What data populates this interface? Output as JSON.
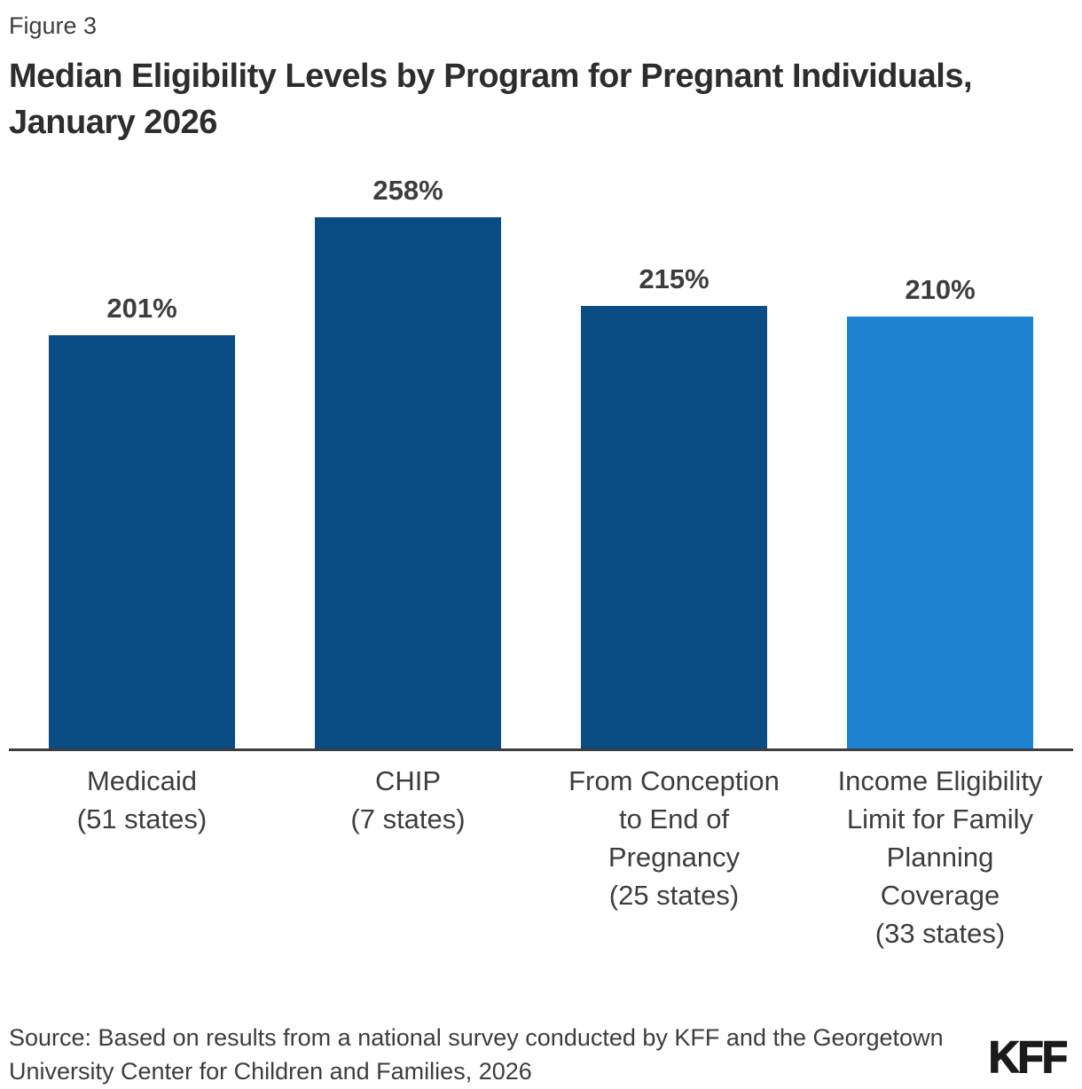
{
  "figure_label": "Figure 3",
  "title_line1": "Median Eligibility Levels by Program for Pregnant Individuals,",
  "title_line2": "January 2026",
  "source": "Source: Based on results from a national survey conducted by KFF and the Georgetown\nUniversity Center for Children and Families, 2026",
  "logo_text": "KFF",
  "colors": {
    "bar_dark_blue": "#0a4d85",
    "bar_light_blue": "#1e82d2",
    "axis": "#3d3d3d",
    "text": "#3d3d3d",
    "title_text": "#2d2d2d",
    "background": "#ffffff"
  },
  "chart_data": {
    "type": "bar",
    "title": "Median Eligibility Levels by Program for Pregnant Individuals, January 2026",
    "categories": [
      "Medicaid\n(51 states)",
      "CHIP\n(7 states)",
      "From Conception\nto End of\nPregnancy\n(25 states)",
      "Income Eligibility\nLimit for Family\nPlanning\nCoverage\n(33 states)"
    ],
    "values": [
      201,
      258,
      215,
      210
    ],
    "value_labels": [
      "201%",
      "258%",
      "215%",
      "210%"
    ],
    "bar_colors": [
      "#0a4d85",
      "#0a4d85",
      "#0a4d85",
      "#1e82d2"
    ],
    "xlabel": "",
    "ylabel": "",
    "ylim": [
      0,
      280
    ],
    "grid": false,
    "legend": false,
    "value_label_position": "above-bars",
    "y_axis_ticks_visible": false
  }
}
